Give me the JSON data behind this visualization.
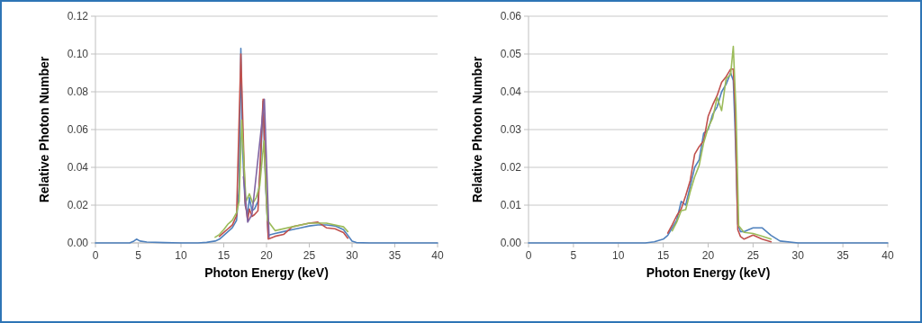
{
  "chart_data": [
    {
      "type": "line",
      "xlabel": "Photon Energy (keV)",
      "ylabel": "Relative Photon Number",
      "xlim": [
        0,
        40
      ],
      "xticks": [
        0,
        5,
        10,
        15,
        20,
        25,
        30,
        35,
        40
      ],
      "ylim": [
        0,
        0.12
      ],
      "yticks": [
        {
          "value": 0,
          "label": "0.00"
        },
        {
          "value": 0.02,
          "label": "0.02"
        },
        {
          "value": 0.04,
          "label": "0.04"
        },
        {
          "value": 0.06,
          "label": "0.06"
        },
        {
          "value": 0.08,
          "label": "0.08"
        },
        {
          "value": 0.1,
          "label": "0.10"
        },
        {
          "value": 0.12,
          "label": "0.12"
        }
      ],
      "grid": "y",
      "marker": "none",
      "line_style": "solid",
      "series": [
        {
          "color": "#4f81bd",
          "x": [
            0,
            4,
            4.5,
            4.8,
            5.2,
            6,
            8,
            10,
            12,
            13,
            14,
            14.5,
            15,
            15.5,
            16,
            16.5,
            16.8,
            17.0,
            17.2,
            17.5,
            17.8,
            18,
            18.3,
            18.6,
            19,
            19.3,
            19.6,
            19.9,
            20.2,
            21,
            22,
            23,
            24,
            25,
            26,
            27,
            28,
            29,
            29.5,
            30,
            30.5,
            32,
            35,
            40
          ],
          "values": [
            0,
            0,
            0.001,
            0.002,
            0.001,
            0.0005,
            0.0002,
            0,
            0,
            0.0003,
            0.001,
            0.002,
            0.004,
            0.006,
            0.008,
            0.012,
            0.03,
            0.103,
            0.05,
            0.02,
            0.015,
            0.024,
            0.017,
            0.018,
            0.022,
            0.04,
            0.075,
            0.03,
            0.004,
            0.005,
            0.006,
            0.007,
            0.008,
            0.009,
            0.0095,
            0.0095,
            0.009,
            0.007,
            0.004,
            0.001,
            0.0002,
            0,
            0,
            0
          ]
        },
        {
          "color": "#c0504d",
          "x": [
            14.5,
            15,
            15.5,
            16,
            16.5,
            17.0,
            17.5,
            17.8,
            18,
            18.3,
            18.6,
            19,
            19.6,
            19.9,
            20.2,
            21,
            22,
            23,
            24,
            25,
            26,
            27,
            28,
            29,
            29.5
          ],
          "values": [
            0.0035,
            0.0055,
            0.0075,
            0.0095,
            0.0145,
            0.1,
            0.022,
            0.012,
            0.018,
            0.014,
            0.015,
            0.017,
            0.076,
            0.034,
            0.002,
            0.0035,
            0.0045,
            0.0085,
            0.0095,
            0.0105,
            0.011,
            0.008,
            0.0075,
            0.0055,
            0.0025
          ]
        },
        {
          "color": "#9bbb59",
          "x": [
            14,
            14.5,
            15,
            15.5,
            16,
            16.5,
            16.8,
            17.1,
            17.6,
            18,
            18.4,
            18.8,
            19.2,
            19.7,
            20.1,
            21,
            23,
            25,
            27,
            29,
            29.5
          ],
          "values": [
            0.003,
            0.0045,
            0.007,
            0.01,
            0.012,
            0.016,
            0.022,
            0.065,
            0.022,
            0.026,
            0.021,
            0.024,
            0.03,
            0.054,
            0.012,
            0.0065,
            0.0085,
            0.0105,
            0.0105,
            0.0085,
            0.006
          ]
        },
        {
          "color": "#8064a2",
          "x": [
            17.3,
            17.8,
            18.3,
            19.75,
            20.3
          ],
          "values": [
            0.035,
            0.011,
            0.015,
            0.076,
            0.003
          ]
        }
      ]
    },
    {
      "type": "line",
      "xlabel": "Photon Energy (keV)",
      "ylabel": "Relative Photon Number",
      "xlim": [
        0,
        40
      ],
      "xticks": [
        0,
        5,
        10,
        15,
        20,
        25,
        30,
        35,
        40
      ],
      "ylim": [
        0,
        0.06
      ],
      "yticks": [
        {
          "value": 0,
          "label": "0.00"
        },
        {
          "value": 0.01,
          "label": "0.01"
        },
        {
          "value": 0.02,
          "label": "0.02"
        },
        {
          "value": 0.03,
          "label": "0.03"
        },
        {
          "value": 0.04,
          "label": "0.04"
        },
        {
          "value": 0.05,
          "label": "0.05"
        },
        {
          "value": 0.06,
          "label": "0.06"
        }
      ],
      "grid": "y",
      "marker": "none",
      "line_style": "solid",
      "series": [
        {
          "color": "#4f81bd",
          "x": [
            0,
            5,
            10,
            13,
            14,
            15,
            15.5,
            16,
            16.5,
            17,
            17.5,
            18,
            18.5,
            19,
            19.5,
            20,
            20.5,
            21,
            21.5,
            22,
            22.5,
            22.8,
            23,
            23.3,
            23.6,
            24,
            25,
            26,
            27,
            28,
            30,
            35,
            40
          ],
          "values": [
            0,
            0,
            0,
            0,
            0.0003,
            0.001,
            0.002,
            0.004,
            0.006,
            0.011,
            0.01,
            0.015,
            0.02,
            0.022,
            0.029,
            0.03,
            0.034,
            0.036,
            0.04,
            0.042,
            0.045,
            0.043,
            0.03,
            0.005,
            0.003,
            0.003,
            0.004,
            0.004,
            0.002,
            0.0005,
            0,
            0,
            0
          ]
        },
        {
          "color": "#c0504d",
          "x": [
            15.5,
            16,
            16.5,
            17,
            17.5,
            18,
            18.5,
            19,
            19.5,
            20,
            20.5,
            21,
            21.5,
            22,
            22.5,
            22.8,
            23,
            23.3,
            23.6,
            24,
            25,
            26,
            27
          ],
          "values": [
            0.0026,
            0.0048,
            0.0072,
            0.009,
            0.0125,
            0.0165,
            0.0235,
            0.0255,
            0.027,
            0.0335,
            0.0365,
            0.039,
            0.0425,
            0.044,
            0.046,
            0.046,
            0.036,
            0.0035,
            0.0017,
            0.001,
            0.0021,
            0.001,
            0.0003
          ]
        },
        {
          "color": "#9bbb59",
          "x": [
            16,
            16.5,
            17,
            17.5,
            18,
            18.5,
            19,
            19.5,
            20,
            20.5,
            21,
            21.5,
            22,
            22.5,
            22.8,
            23.1,
            23.4,
            24,
            25,
            26,
            27
          ],
          "values": [
            0.0032,
            0.0055,
            0.0085,
            0.0088,
            0.0135,
            0.0175,
            0.0205,
            0.0265,
            0.0305,
            0.033,
            0.0385,
            0.035,
            0.0435,
            0.0445,
            0.052,
            0.035,
            0.0045,
            0.0028,
            0.0025,
            0.0018,
            0.001
          ]
        }
      ]
    }
  ]
}
